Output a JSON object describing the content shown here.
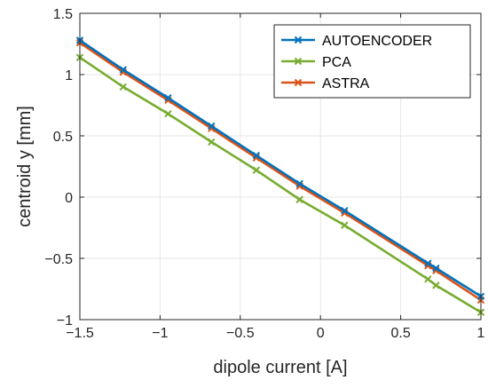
{
  "chart_data": {
    "type": "line",
    "xlabel": "dipole current [A]",
    "ylabel": "centroid y [mm]",
    "xlim": [
      -1.5,
      1
    ],
    "ylim": [
      -1,
      1.5
    ],
    "xticks": [
      -1.5,
      -1,
      -0.5,
      0,
      0.5,
      1
    ],
    "xtick_labels": [
      "−1.5",
      "−1",
      "−0.5",
      "0",
      "0.5",
      "1"
    ],
    "yticks": [
      -1,
      -0.5,
      0,
      0.5,
      1,
      1.5
    ],
    "ytick_labels": [
      "−1",
      "−0.5",
      "0",
      "0.5",
      "1",
      "1.5"
    ],
    "grid": true,
    "legend_position": "top-right",
    "marker": "x",
    "x": [
      -1.5,
      -1.23,
      -0.95,
      -0.68,
      -0.4,
      -0.13,
      0.15,
      0.67,
      0.72,
      1.0
    ],
    "series": [
      {
        "name": "AUTOENCODER",
        "color": "#0072BD",
        "values": [
          1.28,
          1.04,
          0.81,
          0.58,
          0.34,
          0.11,
          -0.11,
          -0.54,
          -0.58,
          -0.81
        ]
      },
      {
        "name": "PCA",
        "color": "#77AC30",
        "values": [
          1.14,
          0.9,
          0.68,
          0.45,
          0.22,
          -0.02,
          -0.23,
          -0.67,
          -0.72,
          -0.94
        ]
      },
      {
        "name": "ASTRA",
        "color": "#D95319",
        "values": [
          1.26,
          1.02,
          0.79,
          0.56,
          0.32,
          0.09,
          -0.13,
          -0.56,
          -0.6,
          -0.84
        ]
      }
    ]
  }
}
